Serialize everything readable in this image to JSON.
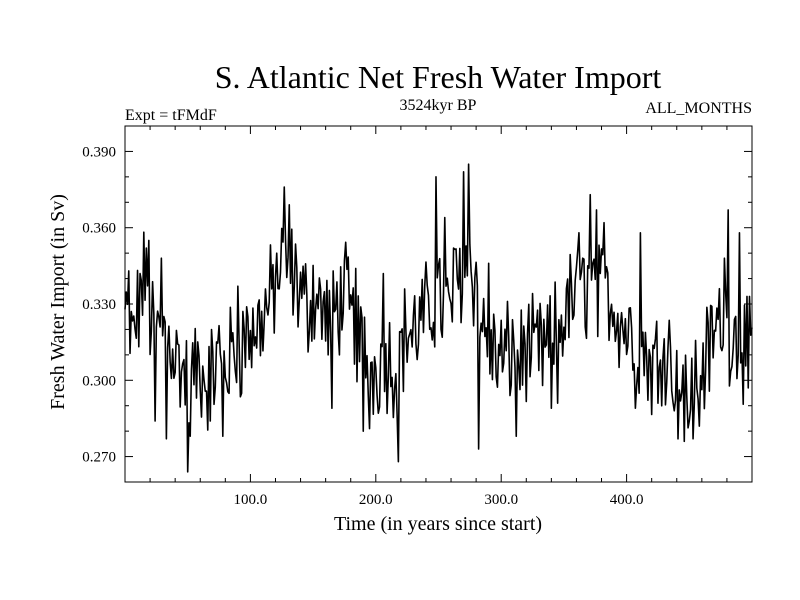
{
  "chart_data": {
    "type": "line",
    "title": "S. Atlantic Net Fresh Water Import",
    "subtitle_left": "Expt = tFMdF",
    "subtitle_center": "3524kyr BP",
    "subtitle_right": "ALL_MONTHS",
    "xlabel": "Time (in years since start)",
    "ylabel": "Fresh Water Import (in Sv)",
    "xlim": [
      0,
      500
    ],
    "ylim": [
      0.26,
      0.4
    ],
    "x_ticks": [
      100,
      200,
      300,
      400
    ],
    "x_tick_labels": [
      "100.0",
      "200.0",
      "300.0",
      "400.0"
    ],
    "y_ticks": [
      0.27,
      0.3,
      0.33,
      0.36,
      0.39
    ],
    "y_tick_labels": [
      "0.270",
      "0.300",
      "0.330",
      "0.360",
      "0.390"
    ],
    "grid": false,
    "series": [
      {
        "name": "Net Fresh Water Import",
        "color": "#000000",
        "anchors": [
          [
            0,
            0.325
          ],
          [
            5,
            0.315
          ],
          [
            10,
            0.325
          ],
          [
            15,
            0.338
          ],
          [
            20,
            0.325
          ],
          [
            25,
            0.318
          ],
          [
            30,
            0.32
          ],
          [
            35,
            0.318
          ],
          [
            40,
            0.31
          ],
          [
            45,
            0.305
          ],
          [
            50,
            0.298
          ],
          [
            55,
            0.302
          ],
          [
            60,
            0.305
          ],
          [
            65,
            0.3
          ],
          [
            70,
            0.303
          ],
          [
            75,
            0.31
          ],
          [
            80,
            0.305
          ],
          [
            85,
            0.31
          ],
          [
            90,
            0.312
          ],
          [
            95,
            0.315
          ],
          [
            100,
            0.318
          ],
          [
            105,
            0.32
          ],
          [
            110,
            0.325
          ],
          [
            115,
            0.33
          ],
          [
            120,
            0.338
          ],
          [
            125,
            0.345
          ],
          [
            130,
            0.343
          ],
          [
            135,
            0.34
          ],
          [
            140,
            0.335
          ],
          [
            145,
            0.328
          ],
          [
            150,
            0.335
          ],
          [
            155,
            0.33
          ],
          [
            160,
            0.325
          ],
          [
            165,
            0.322
          ],
          [
            170,
            0.33
          ],
          [
            175,
            0.335
          ],
          [
            180,
            0.325
          ],
          [
            185,
            0.318
          ],
          [
            190,
            0.312
          ],
          [
            195,
            0.305
          ],
          [
            200,
            0.305
          ],
          [
            205,
            0.308
          ],
          [
            210,
            0.31
          ],
          [
            215,
            0.305
          ],
          [
            220,
            0.312
          ],
          [
            225,
            0.32
          ],
          [
            230,
            0.318
          ],
          [
            235,
            0.322
          ],
          [
            240,
            0.325
          ],
          [
            245,
            0.33
          ],
          [
            250,
            0.335
          ],
          [
            255,
            0.325
          ],
          [
            260,
            0.33
          ],
          [
            265,
            0.338
          ],
          [
            270,
            0.345
          ],
          [
            275,
            0.348
          ],
          [
            280,
            0.338
          ],
          [
            285,
            0.322
          ],
          [
            290,
            0.312
          ],
          [
            295,
            0.31
          ],
          [
            300,
            0.308
          ],
          [
            305,
            0.31
          ],
          [
            310,
            0.312
          ],
          [
            315,
            0.308
          ],
          [
            320,
            0.312
          ],
          [
            325,
            0.31
          ],
          [
            330,
            0.312
          ],
          [
            335,
            0.31
          ],
          [
            340,
            0.315
          ],
          [
            345,
            0.32
          ],
          [
            350,
            0.325
          ],
          [
            355,
            0.33
          ],
          [
            360,
            0.333
          ],
          [
            365,
            0.335
          ],
          [
            370,
            0.338
          ],
          [
            375,
            0.335
          ],
          [
            380,
            0.332
          ],
          [
            385,
            0.335
          ],
          [
            390,
            0.33
          ],
          [
            395,
            0.325
          ],
          [
            400,
            0.32
          ],
          [
            405,
            0.318
          ],
          [
            410,
            0.315
          ],
          [
            415,
            0.31
          ],
          [
            420,
            0.305
          ],
          [
            425,
            0.31
          ],
          [
            430,
            0.315
          ],
          [
            435,
            0.31
          ],
          [
            440,
            0.3
          ],
          [
            445,
            0.295
          ],
          [
            450,
            0.295
          ],
          [
            455,
            0.3
          ],
          [
            460,
            0.305
          ],
          [
            465,
            0.31
          ],
          [
            470,
            0.318
          ],
          [
            475,
            0.325
          ],
          [
            480,
            0.322
          ],
          [
            485,
            0.318
          ],
          [
            490,
            0.318
          ],
          [
            495,
            0.312
          ],
          [
            500,
            0.308
          ]
        ],
        "extremes": [
          [
            3,
            0.343
          ],
          [
            12,
            0.342
          ],
          [
            17,
            0.352
          ],
          [
            19,
            0.355
          ],
          [
            24,
            0.284
          ],
          [
            29,
            0.348
          ],
          [
            33,
            0.277
          ],
          [
            50,
            0.264
          ],
          [
            52,
            0.278
          ],
          [
            68,
            0.284
          ],
          [
            78,
            0.278
          ],
          [
            90,
            0.337
          ],
          [
            98,
            0.325
          ],
          [
            127,
            0.376
          ],
          [
            131,
            0.369
          ],
          [
            165,
            0.289
          ],
          [
            184,
            0.344
          ],
          [
            190,
            0.28
          ],
          [
            195,
            0.281
          ],
          [
            206,
            0.342
          ],
          [
            218,
            0.268
          ],
          [
            248,
            0.38
          ],
          [
            255,
            0.364
          ],
          [
            262,
            0.352
          ],
          [
            270,
            0.382
          ],
          [
            274,
            0.385
          ],
          [
            282,
            0.273
          ],
          [
            290,
            0.346
          ],
          [
            312,
            0.278
          ],
          [
            340,
            0.289
          ],
          [
            345,
            0.291
          ],
          [
            362,
            0.358
          ],
          [
            365,
            0.348
          ],
          [
            371,
            0.373
          ],
          [
            376,
            0.367
          ],
          [
            382,
            0.362
          ],
          [
            407,
            0.289
          ],
          [
            411,
            0.358
          ],
          [
            425,
            0.291
          ],
          [
            438,
            0.288
          ],
          [
            446,
            0.276
          ],
          [
            450,
            0.284
          ],
          [
            453,
            0.277
          ],
          [
            458,
            0.282
          ],
          [
            478,
            0.348
          ],
          [
            481,
            0.367
          ],
          [
            490,
            0.358
          ],
          [
            497,
            0.297
          ]
        ]
      }
    ]
  }
}
